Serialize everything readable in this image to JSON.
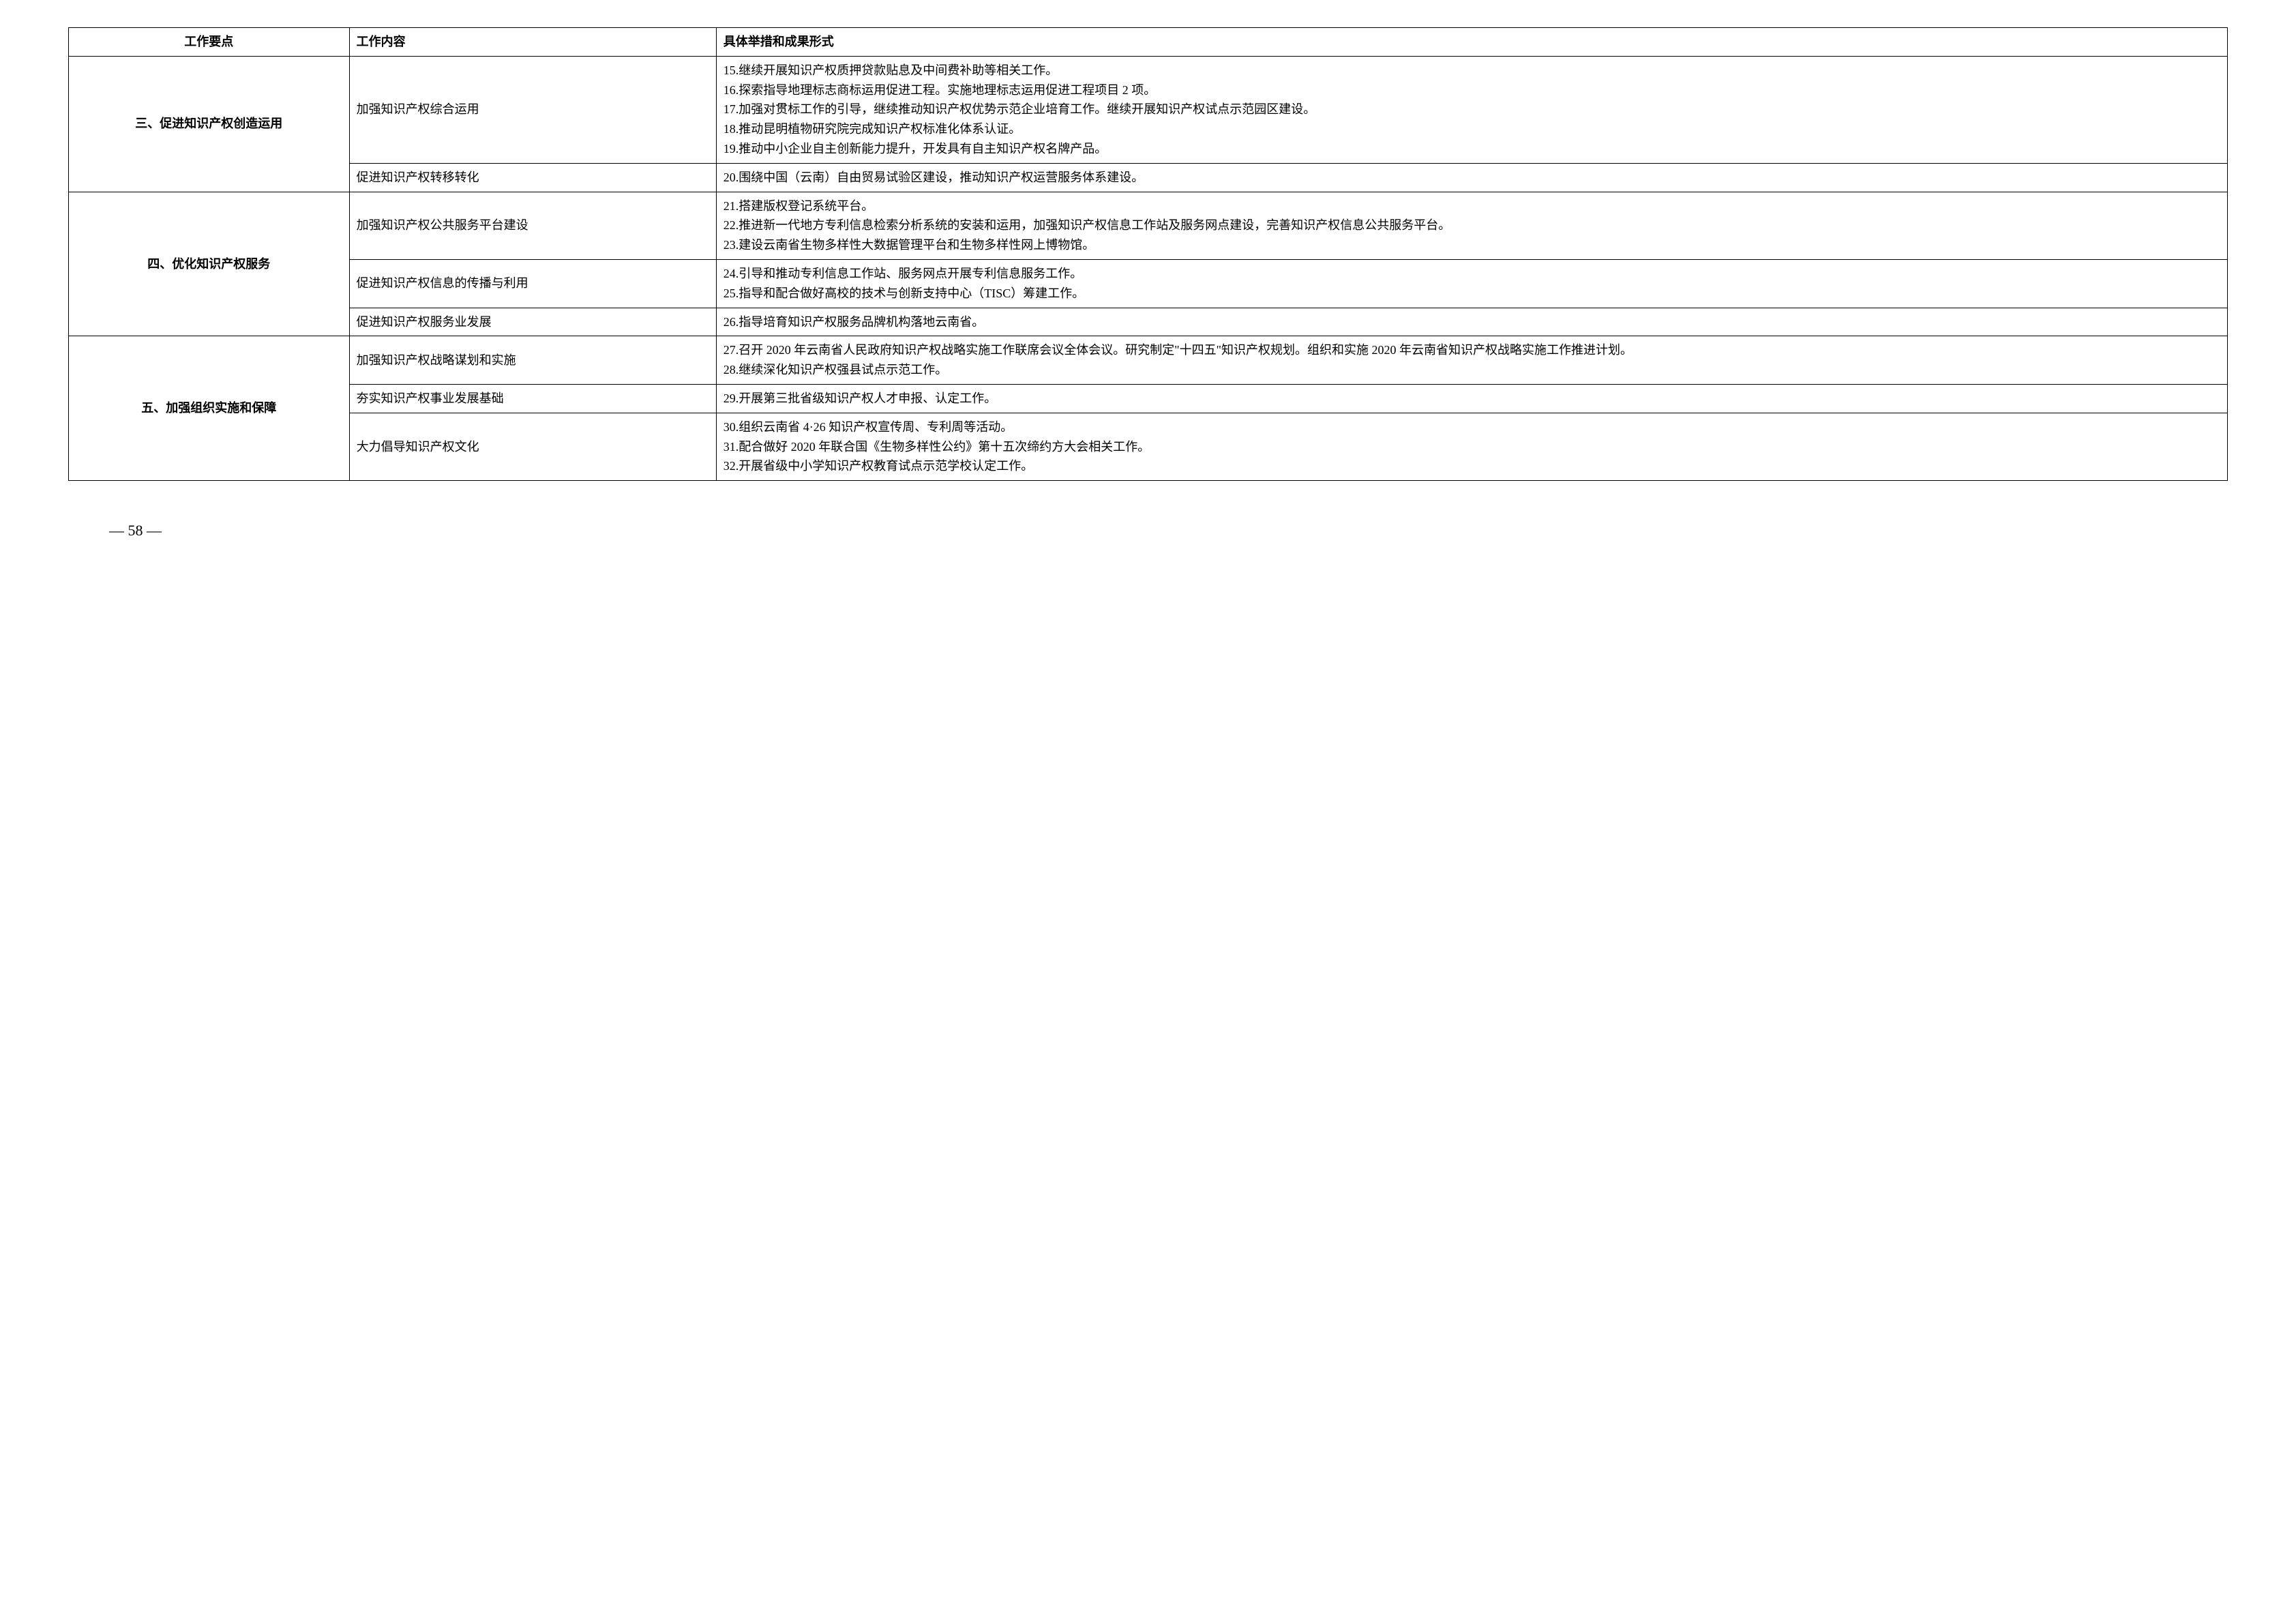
{
  "headers": {
    "col1": "工作要点",
    "col2": "工作内容",
    "col3": "具体举措和成果形式"
  },
  "sections": [
    {
      "title": "三、促进知识产权创造运用",
      "rows": [
        {
          "content": "加强知识产权综合运用",
          "items": [
            "15.继续开展知识产权质押贷款贴息及中间费补助等相关工作。",
            "16.探索指导地理标志商标运用促进工程。实施地理标志运用促进工程项目 2 项。",
            "17.加强对贯标工作的引导，继续推动知识产权优势示范企业培育工作。继续开展知识产权试点示范园区建设。",
            "18.推动昆明植物研究院完成知识产权标准化体系认证。",
            "19.推动中小企业自主创新能力提升，开发具有自主知识产权名牌产品。"
          ]
        },
        {
          "content": "促进知识产权转移转化",
          "items": [
            "20.围绕中国（云南）自由贸易试验区建设，推动知识产权运营服务体系建设。"
          ]
        }
      ]
    },
    {
      "title": "四、优化知识产权服务",
      "rows": [
        {
          "content": "加强知识产权公共服务平台建设",
          "items": [
            "21.搭建版权登记系统平台。",
            "22.推进新一代地方专利信息检索分析系统的安装和运用，加强知识产权信息工作站及服务网点建设，完善知识产权信息公共服务平台。",
            "23.建设云南省生物多样性大数据管理平台和生物多样性网上博物馆。"
          ]
        },
        {
          "content": "促进知识产权信息的传播与利用",
          "items": [
            "24.引导和推动专利信息工作站、服务网点开展专利信息服务工作。",
            "25.指导和配合做好高校的技术与创新支持中心（TISC）筹建工作。"
          ]
        },
        {
          "content": "促进知识产权服务业发展",
          "items": [
            "26.指导培育知识产权服务品牌机构落地云南省。"
          ]
        }
      ]
    },
    {
      "title": "五、加强组织实施和保障",
      "rows": [
        {
          "content": "加强知识产权战略谋划和实施",
          "items": [
            "27.召开 2020 年云南省人民政府知识产权战略实施工作联席会议全体会议。研究制定\"十四五\"知识产权规划。组织和实施 2020 年云南省知识产权战略实施工作推进计划。",
            "28.继续深化知识产权强县试点示范工作。"
          ]
        },
        {
          "content": "夯实知识产权事业发展基础",
          "items": [
            "29.开展第三批省级知识产权人才申报、认定工作。"
          ]
        },
        {
          "content": "大力倡导知识产权文化",
          "items": [
            "30.组织云南省 4·26 知识产权宣传周、专利周等活动。",
            "31.配合做好 2020 年联合国《生物多样性公约》第十五次缔约方大会相关工作。",
            "32.开展省级中小学知识产权教育试点示范学校认定工作。"
          ]
        }
      ]
    }
  ],
  "pageNumber": "— 58 —"
}
